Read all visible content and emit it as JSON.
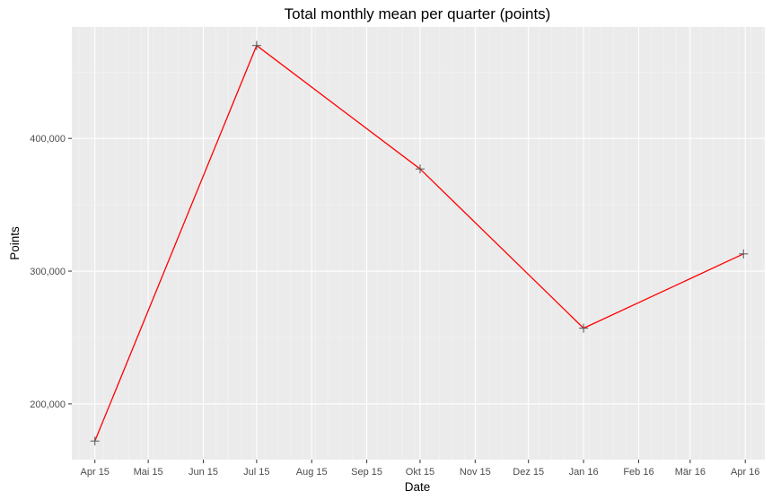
{
  "chart_data": {
    "type": "line",
    "title": "Total monthly mean per quarter (points)",
    "xlabel": "Date",
    "ylabel": "Points",
    "x_ticks": [
      "Apr 15",
      "Mai 15",
      "Jun 15",
      "Jul 15",
      "Aug 15",
      "Sep 15",
      "Okt 15",
      "Nov 15",
      "Dez 15",
      "Jan 16",
      "Feb 16",
      "Mär 16",
      "Apr 16"
    ],
    "x_tick_dates": [
      "2015-04-01",
      "2015-05-01",
      "2015-06-01",
      "2015-07-01",
      "2015-08-01",
      "2015-09-01",
      "2015-10-01",
      "2015-11-01",
      "2015-12-01",
      "2016-01-01",
      "2016-02-01",
      "2016-03-01",
      "2016-04-01"
    ],
    "xlim": [
      "2015-03-19",
      "2016-04-12"
    ],
    "y_ticks": [
      200000,
      300000,
      400000
    ],
    "y_tick_labels": [
      "200,000",
      "300,000",
      "400,000"
    ],
    "ylim": [
      158000,
      484000
    ],
    "grid": true,
    "line_color": "#ff0000",
    "marker_color": "#555555",
    "background": "#ebebeb",
    "series": [
      {
        "x": [
          "2015-04-01",
          "2015-07-01",
          "2015-10-01",
          "2016-01-01",
          "2016-03-31"
        ],
        "y": [
          172000,
          470000,
          377000,
          257000,
          313000
        ]
      }
    ]
  }
}
